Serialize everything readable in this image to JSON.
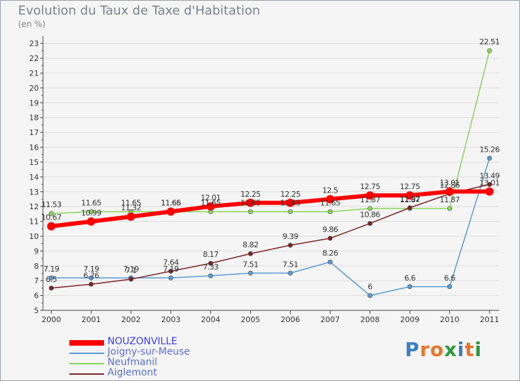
{
  "title": "Evolution du Taux de Taxe d'Habitation",
  "unit": "(en %)",
  "logo": {
    "text": "Proxiti",
    "colors": [
      "#3b7fc4",
      "#e8752a",
      "#e8752a",
      "#2a9a3a",
      "#3b7fc4",
      "#e8752a",
      "#2a9a3a"
    ]
  },
  "chart_data": {
    "type": "line",
    "x": [
      "2000",
      "2001",
      "2002",
      "2003",
      "2004",
      "2005",
      "2006",
      "2007",
      "2008",
      "2009",
      "2010",
      "2011"
    ],
    "ylim": [
      5,
      23.5
    ],
    "yticks": [
      "5",
      "6",
      "7",
      "8",
      "9",
      "10",
      "11",
      "12",
      "13",
      "14",
      "15",
      "16",
      "17",
      "18",
      "19",
      "20",
      "21",
      "22",
      "23"
    ],
    "grid": "horizontal",
    "legend": "bottom-left",
    "series": [
      {
        "name": "NOUZONVILLE",
        "color": "#ff0000",
        "values": [
          10.67,
          10.99,
          11.32,
          11.66,
          12.01,
          12.25,
          12.25,
          12.5,
          12.75,
          12.75,
          13.01,
          13.01
        ],
        "labels": [
          "10.67",
          "10.99",
          "11.32",
          "11.66",
          "12.01",
          "12.25",
          "12.25",
          "12.5",
          "12.75",
          "12.75",
          "13.01",
          "13.01"
        ]
      },
      {
        "name": "Joigny-sur-Meuse",
        "color": "#5a9bd5",
        "values": [
          7.19,
          7.19,
          7.19,
          7.19,
          7.33,
          7.51,
          7.51,
          8.26,
          6,
          6.6,
          6.6,
          15.26
        ],
        "labels": [
          "7.19",
          "7.19",
          "7.19",
          "7.19",
          "7.33",
          "7.51",
          "7.51",
          "8.26",
          "6",
          "6.6",
          "6.6",
          "15.26"
        ]
      },
      {
        "name": "Neufmanil",
        "color": "#88d45a",
        "values": [
          11.53,
          11.65,
          11.65,
          11.65,
          11.65,
          11.65,
          11.65,
          11.65,
          11.87,
          11.87,
          11.87,
          22.51
        ],
        "labels": [
          "11.53",
          "11.65",
          "11.65",
          "11.65",
          "11.65",
          "11.65",
          "11.65",
          "11.65",
          "11.87",
          "11.87",
          "11.87",
          "22.51"
        ]
      },
      {
        "name": "Aiglemont",
        "color": "#7a2323",
        "values": [
          6.5,
          6.76,
          7.1,
          7.64,
          8.17,
          8.82,
          9.39,
          9.86,
          10.86,
          11.92,
          12.86,
          13.49
        ],
        "labels": [
          "6.5",
          "6.76",
          "7.1",
          "7.64",
          "8.17",
          "8.82",
          "9.39",
          "9.86",
          "10.86",
          "11.92",
          "12.86",
          "13.49"
        ]
      }
    ]
  }
}
